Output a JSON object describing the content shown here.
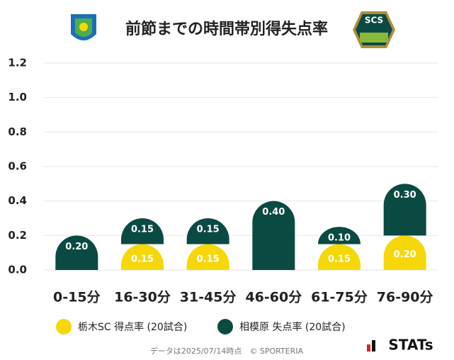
{
  "chart_data": {
    "type": "bar",
    "stacked": true,
    "title": "前節までの時間帯別得失点率",
    "logo_right_text": "SCS",
    "categories": [
      "0-15分",
      "16-30分",
      "31-45分",
      "46-60分",
      "61-75分",
      "76-90分"
    ],
    "series": [
      {
        "name": "栃木SC 得点率 (20試合)",
        "color": "#f6d70a",
        "values": [
          0,
          0.15,
          0.15,
          0,
          0.15,
          0.2
        ],
        "value_labels": [
          null,
          "0.15",
          "0.15",
          null,
          "0.15",
          "0.20"
        ]
      },
      {
        "name": "相模原 失点率 (20試合)",
        "color": "#0b4a43",
        "values": [
          0.2,
          0.15,
          0.15,
          0.4,
          0.1,
          0.3
        ],
        "value_labels": [
          "0.20",
          "0.15",
          "0.15",
          "0.40",
          "0.10",
          "0.30"
        ]
      }
    ],
    "ylim": [
      0,
      1.2
    ],
    "yticks": [
      {
        "value": 0,
        "label": "0.0"
      },
      {
        "value": 0.2,
        "label": "0.2"
      },
      {
        "value": 0.4,
        "label": "0.4"
      },
      {
        "value": 0.6,
        "label": "0.6"
      },
      {
        "value": 0.8,
        "label": "0.8"
      },
      {
        "value": 1.0,
        "label": "1.0"
      },
      {
        "value": 1.2,
        "label": "1.2"
      }
    ],
    "grid": true,
    "footnote": "データは2025/07/14時点　© SPORTERIA",
    "brand": "STATs"
  }
}
